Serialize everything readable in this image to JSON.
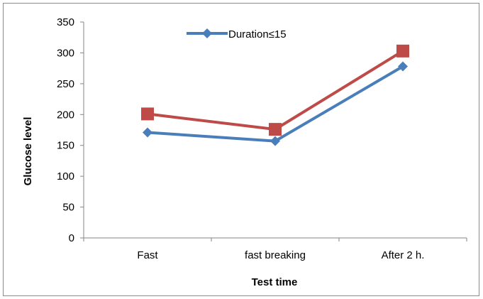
{
  "chart_data": {
    "type": "line",
    "categories": [
      "Fast",
      "fast breaking",
      "After 2 h."
    ],
    "xlabel": "Test time",
    "ylabel": "Glucose level",
    "ylim": [
      0,
      350
    ],
    "yticks": [
      0,
      50,
      100,
      150,
      200,
      250,
      300,
      350
    ],
    "grid": false,
    "legend_position": "top-center",
    "series": [
      {
        "name": "Duration≤15",
        "values": [
          171,
          157,
          278
        ],
        "color": "#4a7ebb",
        "marker": "diamond",
        "in_legend": true
      },
      {
        "values": [
          201,
          176,
          303
        ],
        "color": "#be4b48",
        "marker": "square",
        "in_legend": false
      }
    ]
  }
}
